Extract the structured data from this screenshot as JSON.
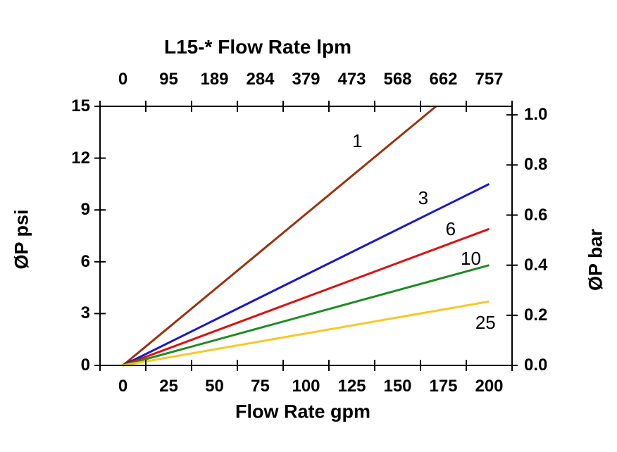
{
  "page": {
    "background": "#ffffff",
    "text_color": "#000000"
  },
  "chart_data": {
    "type": "line",
    "title": "L15-* Flow Rate lpm",
    "grid": false,
    "legend": "inline-curve-labels",
    "axes": {
      "top_x": {
        "unit": "lpm",
        "tick_labels": [
          "0",
          "95",
          "189",
          "284",
          "379",
          "473",
          "568",
          "662",
          "757"
        ]
      },
      "bottom_x": {
        "label": "Flow Rate gpm",
        "unit": "gpm",
        "tick_labels": [
          "0",
          "25",
          "50",
          "75",
          "100",
          "125",
          "150",
          "175",
          "200"
        ],
        "range": [
          0,
          200
        ]
      },
      "left_y": {
        "label": "ØP psi",
        "unit": "psi",
        "tick_labels": [
          "0",
          "3",
          "6",
          "9",
          "12",
          "15"
        ],
        "range": [
          0,
          15
        ]
      },
      "right_y": {
        "label": "ØP bar",
        "unit": "bar",
        "tick_labels": [
          "0.0",
          "0.2",
          "0.4",
          "0.6",
          "0.8",
          "1.0"
        ],
        "range": [
          0,
          1.0
        ],
        "psi_per_bar": 14.5038
      }
    },
    "axis_color": "#000000",
    "series": [
      {
        "label": "1",
        "color": "#993311",
        "points_gpm_psi": [
          [
            0,
            0
          ],
          [
            171,
            15
          ]
        ],
        "label_at": {
          "gpm": 128,
          "psi": 13.0
        }
      },
      {
        "label": "3",
        "color": "#1717CC",
        "points_gpm_psi": [
          [
            0,
            0
          ],
          [
            200,
            10.5
          ]
        ],
        "label_at": {
          "gpm": 164,
          "psi": 9.7
        }
      },
      {
        "label": "6",
        "color": "#DD1111",
        "points_gpm_psi": [
          [
            0,
            0
          ],
          [
            200,
            7.9
          ]
        ],
        "label_at": {
          "gpm": 179,
          "psi": 7.9
        }
      },
      {
        "label": "10",
        "color": "#1E8B22",
        "points_gpm_psi": [
          [
            0,
            0
          ],
          [
            200,
            5.8
          ]
        ],
        "label_at": {
          "gpm": 190,
          "psi": 6.2
        }
      },
      {
        "label": "25",
        "color": "#F7C824",
        "points_gpm_psi": [
          [
            0,
            0
          ],
          [
            200,
            3.7
          ]
        ],
        "label_at": {
          "gpm": 198,
          "psi": 2.5
        }
      }
    ]
  }
}
